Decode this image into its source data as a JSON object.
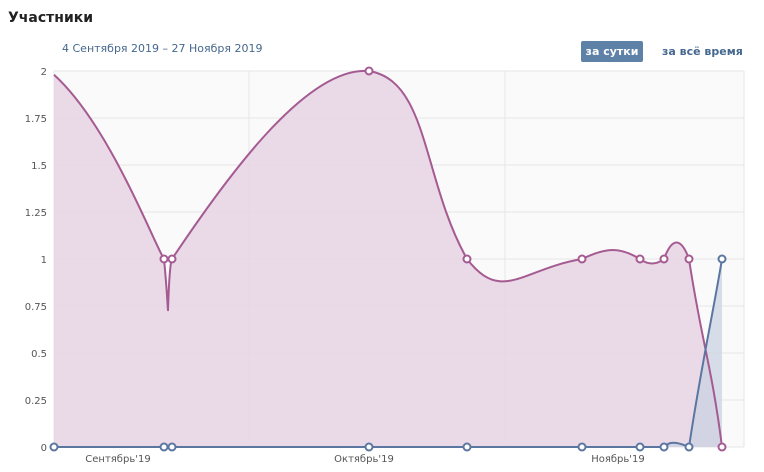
{
  "header": {
    "title": "Участники",
    "date_range": "4 Сентября 2019 – 27 Ноября 2019"
  },
  "toggles": {
    "daily_label": "за сутки",
    "all_time_label": "за всё время",
    "active": "daily"
  },
  "colors": {
    "series_primary": "#a55b92",
    "series_primary_fill": "#e8d6e4",
    "series_secondary": "#5b76a0",
    "series_secondary_fill": "#c9d2e2",
    "grid": "#e6e6e6",
    "button_active_bg": "#5e81a8",
    "link": "#45688e"
  },
  "chart_data": {
    "type": "area",
    "ylim": [
      0,
      2
    ],
    "grid": true,
    "y_ticks": [
      "0",
      "0.25",
      "0.5",
      "0.75",
      "1",
      "1.25",
      "1.5",
      "1.75",
      "2"
    ],
    "x_ticks": [
      {
        "label": "Сентябрь'19",
        "date": "2019-09-01"
      },
      {
        "label": "Октябрь'19",
        "date": "2019-10-01"
      },
      {
        "label": "Ноябрь'19",
        "date": "2019-11-01"
      }
    ],
    "series": [
      {
        "points": [
          {
            "date": "2019-09-04",
            "value": 1.98
          },
          {
            "date": "2019-09-16",
            "value": 1
          },
          {
            "date": "2019-09-17",
            "value": 1
          },
          {
            "date": "2019-10-09",
            "value": 2
          },
          {
            "date": "2019-10-21",
            "value": 1
          },
          {
            "date": "2019-11-04",
            "value": 1
          },
          {
            "date": "2019-11-11",
            "value": 1
          },
          {
            "date": "2019-11-14",
            "value": 1
          },
          {
            "date": "2019-11-17",
            "value": 1
          },
          {
            "date": "2019-11-21",
            "value": 0
          }
        ]
      },
      {
        "points": [
          {
            "date": "2019-09-04",
            "value": 0
          },
          {
            "date": "2019-09-16",
            "value": 0
          },
          {
            "date": "2019-09-17",
            "value": 0
          },
          {
            "date": "2019-10-09",
            "value": 0
          },
          {
            "date": "2019-10-21",
            "value": 0
          },
          {
            "date": "2019-11-04",
            "value": 0
          },
          {
            "date": "2019-11-11",
            "value": 0
          },
          {
            "date": "2019-11-14",
            "value": 0
          },
          {
            "date": "2019-11-17",
            "value": 0
          },
          {
            "date": "2019-11-21",
            "value": 1
          }
        ]
      }
    ]
  }
}
